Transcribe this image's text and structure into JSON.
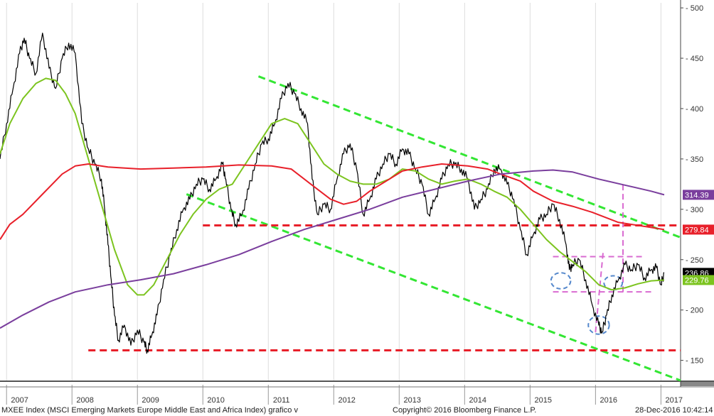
{
  "footer": {
    "left": "MXEE Index (MSCI Emerging Markets Europe Middle East and Africa Index) grafico v",
    "center": "Copyright© 2016 Bloomberg Finance L.P.",
    "right": "28-Dec-2016 10:42:14"
  },
  "chart_data": {
    "type": "line",
    "title": "",
    "xlabel": "",
    "ylabel": "",
    "x_ticks": [
      "2007",
      "2008",
      "2009",
      "2010",
      "2011",
      "2012",
      "2013",
      "2014",
      "2015",
      "2016",
      "2017"
    ],
    "x_range": [
      2006.85,
      2017.25
    ],
    "y_ticks": [
      150,
      200,
      250,
      300,
      350,
      400,
      450,
      500
    ],
    "ylim": [
      130,
      505
    ],
    "y_axis_position": "right",
    "grid": {
      "vertical": true,
      "horizontal": false
    },
    "series": [
      {
        "role": "price",
        "color": "#000000",
        "points": [
          [
            2006.85,
            350
          ],
          [
            2006.95,
            385
          ],
          [
            2007.05,
            420
          ],
          [
            2007.15,
            455
          ],
          [
            2007.22,
            470
          ],
          [
            2007.3,
            450
          ],
          [
            2007.4,
            435
          ],
          [
            2007.5,
            475
          ],
          [
            2007.6,
            440
          ],
          [
            2007.7,
            420
          ],
          [
            2007.8,
            450
          ],
          [
            2007.9,
            465
          ],
          [
            2008.0,
            455
          ],
          [
            2008.1,
            385
          ],
          [
            2008.2,
            360
          ],
          [
            2008.3,
            345
          ],
          [
            2008.4,
            330
          ],
          [
            2008.45,
            300
          ],
          [
            2008.5,
            265
          ],
          [
            2008.55,
            230
          ],
          [
            2008.6,
            195
          ],
          [
            2008.66,
            170
          ],
          [
            2008.75,
            185
          ],
          [
            2008.85,
            165
          ],
          [
            2008.95,
            180
          ],
          [
            2009.05,
            168
          ],
          [
            2009.1,
            160
          ],
          [
            2009.17,
            175
          ],
          [
            2009.25,
            195
          ],
          [
            2009.35,
            230
          ],
          [
            2009.45,
            255
          ],
          [
            2009.55,
            280
          ],
          [
            2009.65,
            300
          ],
          [
            2009.75,
            310
          ],
          [
            2009.85,
            325
          ],
          [
            2009.95,
            330
          ],
          [
            2010.05,
            320
          ],
          [
            2010.15,
            330
          ],
          [
            2010.25,
            345
          ],
          [
            2010.3,
            330
          ],
          [
            2010.38,
            300
          ],
          [
            2010.45,
            285
          ],
          [
            2010.55,
            295
          ],
          [
            2010.65,
            320
          ],
          [
            2010.75,
            345
          ],
          [
            2010.85,
            365
          ],
          [
            2010.95,
            370
          ],
          [
            2011.05,
            385
          ],
          [
            2011.15,
            410
          ],
          [
            2011.25,
            425
          ],
          [
            2011.35,
            415
          ],
          [
            2011.45,
            400
          ],
          [
            2011.55,
            385
          ],
          [
            2011.62,
            330
          ],
          [
            2011.7,
            295
          ],
          [
            2011.8,
            305
          ],
          [
            2011.9,
            300
          ],
          [
            2012.0,
            330
          ],
          [
            2012.1,
            355
          ],
          [
            2012.2,
            365
          ],
          [
            2012.3,
            340
          ],
          [
            2012.4,
            295
          ],
          [
            2012.5,
            310
          ],
          [
            2012.6,
            330
          ],
          [
            2012.7,
            345
          ],
          [
            2012.8,
            355
          ],
          [
            2012.9,
            345
          ],
          [
            2013.0,
            360
          ],
          [
            2013.1,
            355
          ],
          [
            2013.2,
            340
          ],
          [
            2013.3,
            325
          ],
          [
            2013.4,
            295
          ],
          [
            2013.5,
            310
          ],
          [
            2013.6,
            330
          ],
          [
            2013.7,
            345
          ],
          [
            2013.8,
            345
          ],
          [
            2013.9,
            340
          ],
          [
            2014.0,
            330
          ],
          [
            2014.1,
            300
          ],
          [
            2014.2,
            310
          ],
          [
            2014.3,
            320
          ],
          [
            2014.4,
            340
          ],
          [
            2014.5,
            340
          ],
          [
            2014.6,
            325
          ],
          [
            2014.7,
            310
          ],
          [
            2014.8,
            280
          ],
          [
            2014.9,
            255
          ],
          [
            2015.0,
            275
          ],
          [
            2015.1,
            290
          ],
          [
            2015.2,
            295
          ],
          [
            2015.3,
            305
          ],
          [
            2015.4,
            290
          ],
          [
            2015.5,
            265
          ],
          [
            2015.55,
            240
          ],
          [
            2015.6,
            245
          ],
          [
            2015.7,
            250
          ],
          [
            2015.8,
            230
          ],
          [
            2015.9,
            205
          ],
          [
            2016.0,
            185
          ],
          [
            2016.05,
            178
          ],
          [
            2016.12,
            195
          ],
          [
            2016.2,
            215
          ],
          [
            2016.3,
            230
          ],
          [
            2016.4,
            245
          ],
          [
            2016.5,
            240
          ],
          [
            2016.6,
            245
          ],
          [
            2016.7,
            232
          ],
          [
            2016.8,
            240
          ],
          [
            2016.88,
            242
          ],
          [
            2016.95,
            225
          ],
          [
            2017.0,
            236.86
          ]
        ]
      },
      {
        "role": "moving-average-green",
        "color": "#7cc41f",
        "points": [
          [
            2006.85,
            355
          ],
          [
            2007.0,
            385
          ],
          [
            2007.2,
            410
          ],
          [
            2007.4,
            425
          ],
          [
            2007.55,
            430
          ],
          [
            2007.7,
            428
          ],
          [
            2007.85,
            415
          ],
          [
            2008.0,
            395
          ],
          [
            2008.2,
            350
          ],
          [
            2008.4,
            305
          ],
          [
            2008.6,
            260
          ],
          [
            2008.8,
            225
          ],
          [
            2008.95,
            215
          ],
          [
            2009.05,
            215
          ],
          [
            2009.2,
            225
          ],
          [
            2009.4,
            250
          ],
          [
            2009.6,
            275
          ],
          [
            2009.8,
            295
          ],
          [
            2010.0,
            310
          ],
          [
            2010.2,
            320
          ],
          [
            2010.4,
            325
          ],
          [
            2010.6,
            345
          ],
          [
            2010.8,
            365
          ],
          [
            2011.0,
            385
          ],
          [
            2011.2,
            390
          ],
          [
            2011.4,
            385
          ],
          [
            2011.6,
            365
          ],
          [
            2011.8,
            345
          ],
          [
            2012.0,
            335
          ],
          [
            2012.2,
            328
          ],
          [
            2012.4,
            325
          ],
          [
            2012.6,
            325
          ],
          [
            2012.8,
            330
          ],
          [
            2013.0,
            340
          ],
          [
            2013.2,
            338
          ],
          [
            2013.4,
            330
          ],
          [
            2013.6,
            325
          ],
          [
            2013.8,
            328
          ],
          [
            2014.0,
            330
          ],
          [
            2014.2,
            325
          ],
          [
            2014.4,
            318
          ],
          [
            2014.6,
            312
          ],
          [
            2014.8,
            300
          ],
          [
            2015.0,
            285
          ],
          [
            2015.2,
            270
          ],
          [
            2015.4,
            258
          ],
          [
            2015.6,
            248
          ],
          [
            2015.8,
            238
          ],
          [
            2016.0,
            225
          ],
          [
            2016.2,
            220
          ],
          [
            2016.4,
            222
          ],
          [
            2016.6,
            226
          ],
          [
            2016.8,
            229
          ],
          [
            2017.0,
            229.76
          ]
        ]
      },
      {
        "role": "moving-average-red",
        "color": "#e8202a",
        "points": [
          [
            2006.85,
            270
          ],
          [
            2007.0,
            285
          ],
          [
            2007.2,
            295
          ],
          [
            2007.5,
            315
          ],
          [
            2007.8,
            335
          ],
          [
            2008.0,
            343
          ],
          [
            2008.2,
            345
          ],
          [
            2008.5,
            342
          ],
          [
            2009.0,
            340
          ],
          [
            2009.5,
            341
          ],
          [
            2010.0,
            342
          ],
          [
            2010.5,
            344
          ],
          [
            2011.0,
            343
          ],
          [
            2011.3,
            340
          ],
          [
            2011.6,
            325
          ],
          [
            2011.9,
            310
          ],
          [
            2012.1,
            305
          ],
          [
            2012.3,
            308
          ],
          [
            2012.5,
            318
          ],
          [
            2012.8,
            330
          ],
          [
            2013.0,
            338
          ],
          [
            2013.3,
            342
          ],
          [
            2013.6,
            345
          ],
          [
            2014.0,
            343
          ],
          [
            2014.3,
            340
          ],
          [
            2014.5,
            335
          ],
          [
            2014.8,
            328
          ],
          [
            2015.0,
            318
          ],
          [
            2015.3,
            308
          ],
          [
            2015.6,
            303
          ],
          [
            2015.9,
            297
          ],
          [
            2016.1,
            292
          ],
          [
            2016.3,
            287
          ],
          [
            2016.5,
            285
          ],
          [
            2016.8,
            282
          ],
          [
            2017.0,
            279.84
          ]
        ]
      },
      {
        "role": "moving-average-purple",
        "color": "#7a3e9d",
        "points": [
          [
            2006.85,
            182
          ],
          [
            2007.2,
            195
          ],
          [
            2007.6,
            208
          ],
          [
            2008.0,
            218
          ],
          [
            2008.5,
            225
          ],
          [
            2009.0,
            230
          ],
          [
            2009.5,
            236
          ],
          [
            2010.0,
            245
          ],
          [
            2010.5,
            255
          ],
          [
            2011.0,
            268
          ],
          [
            2011.5,
            280
          ],
          [
            2012.0,
            290
          ],
          [
            2012.5,
            300
          ],
          [
            2013.0,
            312
          ],
          [
            2013.5,
            320
          ],
          [
            2014.0,
            328
          ],
          [
            2014.5,
            335
          ],
          [
            2015.0,
            338
          ],
          [
            2015.3,
            339
          ],
          [
            2015.6,
            337
          ],
          [
            2016.0,
            330
          ],
          [
            2016.4,
            324
          ],
          [
            2016.8,
            318
          ],
          [
            2017.0,
            314.39
          ]
        ]
      }
    ],
    "last_value_labels": [
      {
        "value": 314.39,
        "text": "314.39",
        "color": "#7a3e9d"
      },
      {
        "value": 279.84,
        "text": "279.84",
        "color": "#e8202a"
      },
      {
        "value": 236.86,
        "text": "236.86",
        "color": "#000000"
      },
      {
        "value": 229.76,
        "text": "229.76",
        "color": "#7cc41f"
      }
    ],
    "annotations": {
      "trend_channel": [
        {
          "color": "#33e633",
          "from": [
            2010.8,
            432
          ],
          "to": [
            2017.25,
            272
          ]
        },
        {
          "color": "#33e633",
          "from": [
            2009.7,
            315
          ],
          "to": [
            2017.25,
            130
          ]
        }
      ],
      "horizontal_levels": [
        {
          "color": "#e8202a",
          "value": 284,
          "from": 2009.95,
          "to": 2017.25
        },
        {
          "color": "#e8202a",
          "value": 160,
          "from": 2008.2,
          "to": 2017.25
        }
      ],
      "range_box": [
        {
          "color": "#d96bd1",
          "value": 253,
          "from": 2015.3,
          "to": 2016.7
        },
        {
          "color": "#d96bd1",
          "value": 218,
          "from": 2015.3,
          "to": 2016.85
        }
      ],
      "vertical_markers": [
        {
          "color": "#d96bd1",
          "from": [
            2015.95,
            178
          ],
          "to": [
            2016.07,
            260
          ]
        },
        {
          "color": "#d96bd1",
          "from": [
            2016.05,
            218
          ],
          "to": [
            2016.05,
            218
          ]
        },
        {
          "color": "#d96bd1",
          "from": [
            2016.37,
            218
          ],
          "to": [
            2016.37,
            325
          ]
        }
      ],
      "ellipses": [
        {
          "color": "#5588cc",
          "center": [
            2015.42,
            229
          ],
          "rx_years": 0.15,
          "ry_value": 8
        },
        {
          "color": "#5588cc",
          "center": [
            2016.0,
            185
          ],
          "rx_years": 0.16,
          "ry_value": 9
        },
        {
          "color": "#5588cc",
          "center": [
            2016.22,
            227
          ],
          "rx_years": 0.14,
          "ry_value": 7
        }
      ]
    }
  }
}
